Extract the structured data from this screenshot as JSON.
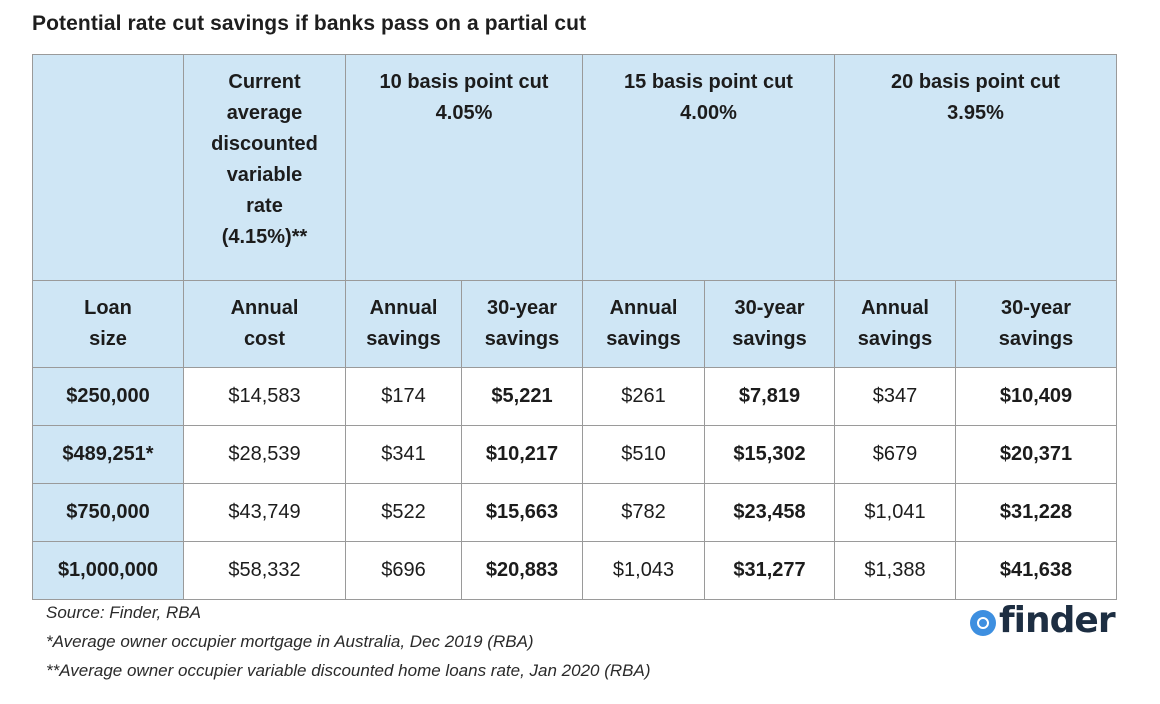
{
  "title": "Potential rate cut savings if banks pass on a partial cut",
  "header": {
    "current_rate_lines": [
      "Current",
      "average",
      "discounted",
      "variable",
      "rate",
      "(4.15%)**"
    ],
    "cut_10": {
      "line1": "10 basis point cut",
      "line2": "4.05%"
    },
    "cut_15": {
      "line1": "15 basis point cut",
      "line2": "4.00%"
    },
    "cut_20": {
      "line1": "20 basis point cut",
      "line2": "3.95%"
    }
  },
  "subheader": {
    "loan_size": [
      "Loan",
      "size"
    ],
    "annual_cost": [
      "Annual",
      "cost"
    ],
    "annual_savings": [
      "Annual",
      "savings"
    ],
    "thirty_year_savings": [
      "30-year",
      "savings"
    ]
  },
  "rows": [
    {
      "loan": "$250,000",
      "annual_cost": "$14,583",
      "s10_annual": "$174",
      "s10_30yr": "$5,221",
      "s15_annual": "$261",
      "s15_30yr": "$7,819",
      "s20_annual": "$347",
      "s20_30yr": "$10,409"
    },
    {
      "loan": "$489,251*",
      "annual_cost": "$28,539",
      "s10_annual": "$341",
      "s10_30yr": "$10,217",
      "s15_annual": "$510",
      "s15_30yr": "$15,302",
      "s20_annual": "$679",
      "s20_30yr": "$20,371"
    },
    {
      "loan": "$750,000",
      "annual_cost": "$43,749",
      "s10_annual": "$522",
      "s10_30yr": "$15,663",
      "s15_annual": "$782",
      "s15_30yr": "$23,458",
      "s20_annual": "$1,041",
      "s20_30yr": "$31,228"
    },
    {
      "loan": "$1,000,000",
      "annual_cost": "$58,332",
      "s10_annual": "$696",
      "s10_30yr": "$20,883",
      "s15_annual": "$1,043",
      "s15_30yr": "$31,277",
      "s20_annual": "$1,388",
      "s20_30yr": "$41,638"
    }
  ],
  "notes": [
    "Source: Finder, RBA",
    "*Average owner occupier mortgage in Australia, Dec 2019 (RBA)",
    "**Average owner occupier variable discounted home loans rate, Jan 2020 (RBA)"
  ],
  "logo": {
    "text": "finder",
    "icon": "finder-logo-icon",
    "color": "#3d8fe0"
  },
  "colors": {
    "header_bg": "#cfe6f5",
    "border": "#9a9a9a",
    "text": "#1c1c1c"
  }
}
